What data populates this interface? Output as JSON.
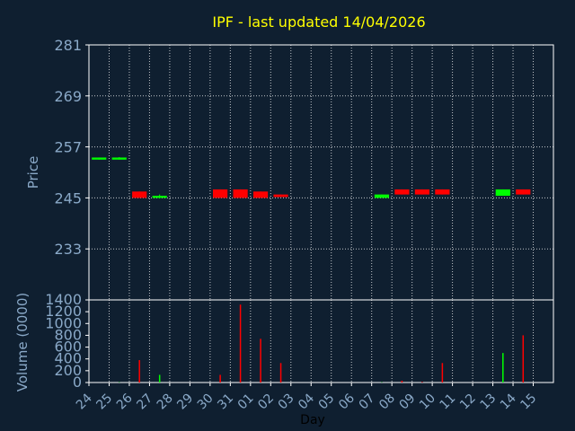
{
  "chart_data": {
    "type": "candlestick",
    "title": "IPF - last updated 14/04/2026",
    "xlabel": "Day",
    "categories": [
      "24",
      "25",
      "26",
      "27",
      "28",
      "29",
      "30",
      "31",
      "01",
      "02",
      "03",
      "04",
      "05",
      "06",
      "07",
      "08",
      "09",
      "10",
      "11",
      "12",
      "13",
      "14",
      "15"
    ],
    "price": {
      "ylabel": "Price",
      "ylim": [
        221,
        281
      ],
      "yticks": [
        281,
        269,
        257,
        245,
        233
      ],
      "candles": [
        {
          "x": "24",
          "open": 254.0,
          "close": 254.5,
          "high": 254.5,
          "low": 254.0,
          "direction": "up"
        },
        {
          "x": "25",
          "open": 254.0,
          "close": 254.5,
          "high": 254.6,
          "low": 254.0,
          "direction": "up"
        },
        {
          "x": "26",
          "open": 246.5,
          "close": 245.0,
          "high": 246.5,
          "low": 245.0,
          "direction": "down"
        },
        {
          "x": "27",
          "open": 245.0,
          "close": 245.5,
          "high": 245.8,
          "low": 244.9,
          "direction": "up"
        },
        {
          "x": "30",
          "open": 247.0,
          "close": 245.0,
          "high": 247.0,
          "low": 245.0,
          "direction": "down"
        },
        {
          "x": "31",
          "open": 247.0,
          "close": 245.0,
          "high": 247.0,
          "low": 245.0,
          "direction": "down"
        },
        {
          "x": "01",
          "open": 246.5,
          "close": 245.0,
          "high": 246.5,
          "low": 245.0,
          "direction": "down"
        },
        {
          "x": "02",
          "open": 245.8,
          "close": 245.2,
          "high": 245.8,
          "low": 245.2,
          "direction": "down"
        },
        {
          "x": "07",
          "open": 245.0,
          "close": 245.8,
          "high": 245.8,
          "low": 245.0,
          "direction": "up"
        },
        {
          "x": "08",
          "open": 247.0,
          "close": 245.8,
          "high": 247.0,
          "low": 245.8,
          "direction": "down"
        },
        {
          "x": "09",
          "open": 247.0,
          "close": 245.8,
          "high": 247.0,
          "low": 245.8,
          "direction": "down"
        },
        {
          "x": "10",
          "open": 247.0,
          "close": 245.8,
          "high": 247.0,
          "low": 245.8,
          "direction": "down"
        },
        {
          "x": "13",
          "open": 245.5,
          "close": 247.0,
          "high": 247.0,
          "low": 245.5,
          "direction": "up"
        },
        {
          "x": "14",
          "open": 247.0,
          "close": 245.8,
          "high": 247.0,
          "low": 245.8,
          "direction": "down"
        }
      ]
    },
    "volume": {
      "ylabel": "Volume (0000)",
      "ylim": [
        0,
        1400
      ],
      "yticks": [
        1400,
        1200,
        1000,
        800,
        600,
        400,
        200,
        0
      ],
      "bars": [
        {
          "x": "24",
          "value": 0,
          "direction": "up"
        },
        {
          "x": "25",
          "value": 5,
          "direction": "up"
        },
        {
          "x": "26",
          "value": 380,
          "direction": "down"
        },
        {
          "x": "27",
          "value": 130,
          "direction": "up"
        },
        {
          "x": "30",
          "value": 130,
          "direction": "down"
        },
        {
          "x": "31",
          "value": 1320,
          "direction": "down"
        },
        {
          "x": "01",
          "value": 740,
          "direction": "down"
        },
        {
          "x": "02",
          "value": 330,
          "direction": "down"
        },
        {
          "x": "07",
          "value": 5,
          "direction": "up"
        },
        {
          "x": "08",
          "value": 30,
          "direction": "down"
        },
        {
          "x": "09",
          "value": 10,
          "direction": "down"
        },
        {
          "x": "10",
          "value": 330,
          "direction": "down"
        },
        {
          "x": "13",
          "value": 500,
          "direction": "up"
        },
        {
          "x": "14",
          "value": 800,
          "direction": "down"
        }
      ]
    },
    "colors": {
      "background": "#0f1f30",
      "up": "#00ff00",
      "down": "#ff0000",
      "grid": "#ffffff",
      "title": "#ffff00",
      "axis_text": "#8aa9c8"
    },
    "grid": true
  }
}
